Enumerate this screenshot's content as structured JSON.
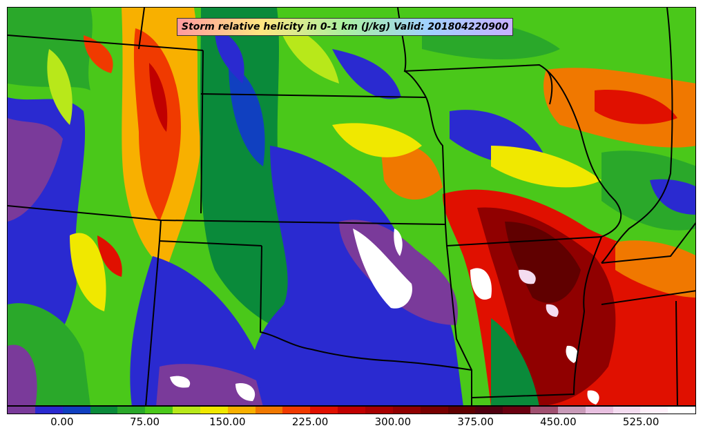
{
  "title": "Storm relative helicity in 0-1 km (J/kg) Valid: 201804220900",
  "colorbar": {
    "tick_labels": [
      "0.00",
      "75.00",
      "150.00",
      "225.00",
      "300.00",
      "375.00",
      "450.00",
      "525.00"
    ],
    "tick_values": [
      0,
      75,
      150,
      225,
      300,
      375,
      450,
      525
    ],
    "range": [
      -50,
      575
    ],
    "colors": [
      "#7a3a9a",
      "#2a2ad0",
      "#1040c0",
      "#0a8a3a",
      "#2aa82a",
      "#4ac81a",
      "#b8e81a",
      "#f0e800",
      "#f8b000",
      "#f07800",
      "#f03a00",
      "#e01000",
      "#c00000",
      "#a80000",
      "#900000",
      "#780000",
      "#600000",
      "#500010",
      "#6a0010",
      "#a05070",
      "#c89ab8",
      "#e8c0e0",
      "#f4dcf0",
      "#fff0fa",
      "#ffffff"
    ]
  },
  "map": {
    "description_layers": [
      "filled-contours",
      "state-boundaries"
    ]
  }
}
